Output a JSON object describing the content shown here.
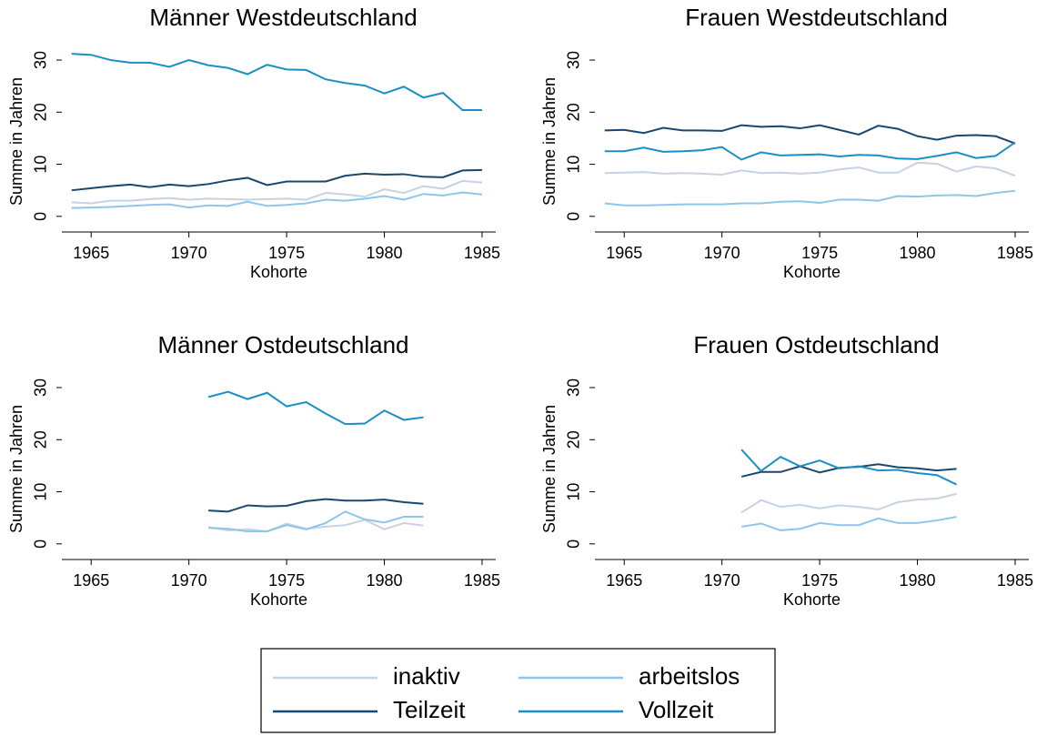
{
  "chart_data": [
    {
      "type": "line",
      "title": "Männer Westdeutschland",
      "xlabel": "Kohorte",
      "ylabel": "Summe in Jahren",
      "x": [
        1964,
        1965,
        1966,
        1967,
        1968,
        1969,
        1970,
        1971,
        1972,
        1973,
        1974,
        1975,
        1976,
        1977,
        1978,
        1979,
        1980,
        1981,
        1982,
        1983,
        1984,
        1985
      ],
      "xlim": [
        1963.5,
        1985.7
      ],
      "xticks": [
        1965,
        1970,
        1975,
        1980,
        1985
      ],
      "ylim": [
        -3,
        33.5
      ],
      "yticks": [
        0,
        10,
        20,
        30
      ],
      "series": [
        {
          "name": "inaktiv",
          "color": "#c6d3e3",
          "values": [
            2.7,
            2.5,
            3.0,
            3.0,
            3.3,
            3.5,
            3.2,
            3.4,
            3.3,
            3.2,
            3.3,
            3.4,
            3.2,
            4.5,
            4.2,
            3.8,
            5.2,
            4.5,
            5.8,
            5.3,
            6.8,
            6.5
          ]
        },
        {
          "name": "arbeitslos",
          "color": "#8ec6e8",
          "values": [
            1.6,
            1.7,
            1.8,
            2.0,
            2.2,
            2.3,
            1.7,
            2.1,
            2.0,
            2.8,
            2.0,
            2.2,
            2.5,
            3.2,
            3.0,
            3.4,
            3.9,
            3.2,
            4.3,
            4.0,
            4.6,
            4.2
          ]
        },
        {
          "name": "Teilzeit",
          "color": "#1a476f",
          "values": [
            5.0,
            5.4,
            5.8,
            6.1,
            5.6,
            6.1,
            5.8,
            6.2,
            6.9,
            7.4,
            6.0,
            6.7,
            6.7,
            6.7,
            7.8,
            8.2,
            8.0,
            8.1,
            7.6,
            7.5,
            8.8,
            8.9
          ]
        },
        {
          "name": "Vollzeit",
          "color": "#1a8fc4",
          "values": [
            31.2,
            31.0,
            30.0,
            29.5,
            29.5,
            28.7,
            30.0,
            29.0,
            28.5,
            27.3,
            29.1,
            28.2,
            28.1,
            26.3,
            25.6,
            25.1,
            23.6,
            24.9,
            22.8,
            23.7,
            20.4,
            20.4
          ]
        }
      ]
    },
    {
      "type": "line",
      "title": "Frauen Westdeutschland",
      "xlabel": "Kohorte",
      "ylabel": "Summe in Jahren",
      "x": [
        1964,
        1965,
        1966,
        1967,
        1968,
        1969,
        1970,
        1971,
        1972,
        1973,
        1974,
        1975,
        1976,
        1977,
        1978,
        1979,
        1980,
        1981,
        1982,
        1983,
        1984,
        1985
      ],
      "xlim": [
        1963.5,
        1985.7
      ],
      "xticks": [
        1965,
        1970,
        1975,
        1980,
        1985
      ],
      "ylim": [
        -3,
        33.5
      ],
      "yticks": [
        0,
        10,
        20,
        30
      ],
      "series": [
        {
          "name": "inaktiv",
          "color": "#c6d3e3",
          "values": [
            8.3,
            8.4,
            8.5,
            8.2,
            8.3,
            8.2,
            8.0,
            8.8,
            8.3,
            8.4,
            8.2,
            8.4,
            9.0,
            9.4,
            8.4,
            8.4,
            10.3,
            10.1,
            8.6,
            9.6,
            9.2,
            7.8
          ]
        },
        {
          "name": "arbeitslos",
          "color": "#8ec6e8",
          "values": [
            2.5,
            2.1,
            2.1,
            2.2,
            2.3,
            2.3,
            2.3,
            2.5,
            2.5,
            2.8,
            2.9,
            2.6,
            3.2,
            3.2,
            3.0,
            3.9,
            3.8,
            4.0,
            4.1,
            3.9,
            4.5,
            4.9
          ]
        },
        {
          "name": "Teilzeit",
          "color": "#1a476f",
          "values": [
            16.5,
            16.6,
            16.0,
            17.0,
            16.5,
            16.5,
            16.4,
            17.5,
            17.2,
            17.3,
            16.9,
            17.5,
            16.6,
            15.7,
            17.4,
            16.8,
            15.4,
            14.7,
            15.5,
            15.6,
            15.4,
            14.0
          ]
        },
        {
          "name": "Vollzeit",
          "color": "#1a8fc4",
          "values": [
            12.5,
            12.5,
            13.2,
            12.4,
            12.5,
            12.7,
            13.3,
            10.9,
            12.3,
            11.7,
            11.8,
            11.9,
            11.5,
            11.8,
            11.7,
            11.1,
            11.0,
            11.6,
            12.3,
            11.2,
            11.6,
            14.2
          ]
        }
      ]
    },
    {
      "type": "line",
      "title": "Männer Ostdeutschland",
      "xlabel": "Kohorte",
      "ylabel": "Summe in Jahren",
      "x": [
        1971,
        1972,
        1973,
        1974,
        1975,
        1976,
        1977,
        1978,
        1979,
        1980,
        1981,
        1982
      ],
      "xlim": [
        1963.5,
        1985.7
      ],
      "xticks": [
        1965,
        1970,
        1975,
        1980,
        1985
      ],
      "ylim": [
        -3,
        33.5
      ],
      "yticks": [
        0,
        10,
        20,
        30
      ],
      "series": [
        {
          "name": "inaktiv",
          "color": "#c6d3e3",
          "values": [
            3.2,
            2.6,
            2.8,
            2.4,
            3.9,
            2.9,
            3.3,
            3.6,
            4.6,
            2.8,
            4.0,
            3.5
          ]
        },
        {
          "name": "arbeitslos",
          "color": "#8ec6e8",
          "values": [
            3.1,
            2.9,
            2.4,
            2.4,
            3.6,
            2.8,
            4.0,
            6.2,
            4.7,
            4.1,
            5.2,
            5.2
          ]
        },
        {
          "name": "Teilzeit",
          "color": "#1a476f",
          "values": [
            6.4,
            6.2,
            7.4,
            7.2,
            7.3,
            8.2,
            8.6,
            8.3,
            8.3,
            8.5,
            8.0,
            7.7
          ]
        },
        {
          "name": "Vollzeit",
          "color": "#1a8fc4",
          "values": [
            28.2,
            29.2,
            27.8,
            29.0,
            26.4,
            27.2,
            25.0,
            23.0,
            23.1,
            25.6,
            23.8,
            24.3
          ]
        }
      ]
    },
    {
      "type": "line",
      "title": "Frauen Ostdeutschland",
      "xlabel": "Kohorte",
      "ylabel": "Summe in Jahren",
      "x": [
        1971,
        1972,
        1973,
        1974,
        1975,
        1976,
        1977,
        1978,
        1979,
        1980,
        1981,
        1982
      ],
      "xlim": [
        1963.5,
        1985.7
      ],
      "xticks": [
        1965,
        1970,
        1975,
        1980,
        1985
      ],
      "ylim": [
        -3,
        33.5
      ],
      "yticks": [
        0,
        10,
        20,
        30
      ],
      "series": [
        {
          "name": "inaktiv",
          "color": "#c6d3e3",
          "values": [
            6.0,
            8.4,
            7.1,
            7.5,
            6.8,
            7.4,
            7.1,
            6.6,
            8.0,
            8.5,
            8.7,
            9.6
          ]
        },
        {
          "name": "arbeitslos",
          "color": "#8ec6e8",
          "values": [
            3.3,
            3.9,
            2.6,
            2.9,
            4.0,
            3.6,
            3.6,
            4.9,
            4.0,
            4.0,
            4.5,
            5.2
          ]
        },
        {
          "name": "Teilzeit",
          "color": "#1a476f",
          "values": [
            12.9,
            13.8,
            13.8,
            14.9,
            13.7,
            14.6,
            14.8,
            15.3,
            14.7,
            14.5,
            14.1,
            14.4
          ]
        },
        {
          "name": "Vollzeit",
          "color": "#1a8fc4",
          "values": [
            18.1,
            14.0,
            16.7,
            14.9,
            16.0,
            14.5,
            14.9,
            14.1,
            14.2,
            13.6,
            13.2,
            11.4
          ]
        }
      ]
    }
  ]
}
